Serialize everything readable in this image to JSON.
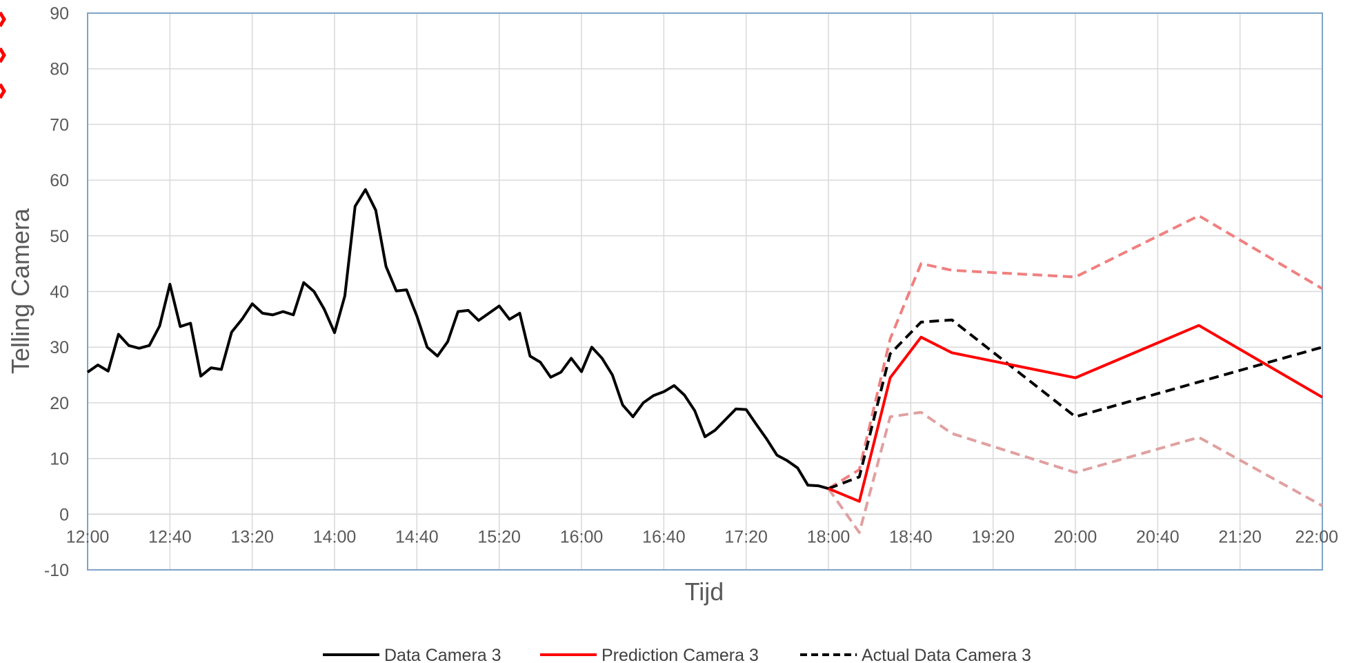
{
  "chart_data": {
    "type": "line",
    "title": "",
    "xlabel": "Tijd",
    "ylabel": "Telling Camera",
    "ylim": [
      -10,
      90
    ],
    "yticks": [
      -10,
      0,
      10,
      20,
      30,
      40,
      50,
      60,
      70,
      80,
      90
    ],
    "xlim": [
      "12:00",
      "22:00"
    ],
    "xticks": [
      "12:00",
      "12:40",
      "13:20",
      "14:00",
      "14:40",
      "15:20",
      "16:00",
      "16:40",
      "17:20",
      "18:00",
      "18:40",
      "19:20",
      "20:00",
      "20:40",
      "21:20",
      "22:00"
    ],
    "grid": true,
    "legend_position": "bottom",
    "series": [
      {
        "name": "Data Camera 3",
        "color": "#000000",
        "style": "solid",
        "legend": true,
        "points": [
          [
            "12:00",
            25.5
          ],
          [
            "12:05",
            26.8
          ],
          [
            "12:10",
            25.7
          ],
          [
            "12:15",
            32.3
          ],
          [
            "12:20",
            30.3
          ],
          [
            "12:25",
            29.8
          ],
          [
            "12:30",
            30.3
          ],
          [
            "12:35",
            33.8
          ],
          [
            "12:40",
            41.3
          ],
          [
            "12:45",
            33.7
          ],
          [
            "12:50",
            34.3
          ],
          [
            "12:55",
            24.8
          ],
          [
            "13:00",
            26.3
          ],
          [
            "13:05",
            26.0
          ],
          [
            "13:10",
            32.7
          ],
          [
            "13:15",
            35.0
          ],
          [
            "13:20",
            37.8
          ],
          [
            "13:25",
            36.1
          ],
          [
            "13:30",
            35.8
          ],
          [
            "13:35",
            36.4
          ],
          [
            "13:40",
            35.8
          ],
          [
            "13:45",
            41.6
          ],
          [
            "13:50",
            40.0
          ],
          [
            "13:55",
            36.8
          ],
          [
            "14:00",
            32.6
          ],
          [
            "14:05",
            39.2
          ],
          [
            "14:10",
            55.3
          ],
          [
            "14:15",
            58.3
          ],
          [
            "14:20",
            54.6
          ],
          [
            "14:25",
            44.5
          ],
          [
            "14:30",
            40.1
          ],
          [
            "14:35",
            40.3
          ],
          [
            "14:40",
            35.6
          ],
          [
            "14:45",
            30.0
          ],
          [
            "14:50",
            28.4
          ],
          [
            "14:55",
            31.0
          ],
          [
            "15:00",
            36.4
          ],
          [
            "15:05",
            36.6
          ],
          [
            "15:10",
            34.8
          ],
          [
            "15:15",
            36.1
          ],
          [
            "15:20",
            37.4
          ],
          [
            "15:25",
            35.0
          ],
          [
            "15:30",
            36.1
          ],
          [
            "15:35",
            28.4
          ],
          [
            "15:40",
            27.3
          ],
          [
            "15:45",
            24.6
          ],
          [
            "15:50",
            25.5
          ],
          [
            "15:55",
            28.0
          ],
          [
            "16:00",
            25.6
          ],
          [
            "16:05",
            30.0
          ],
          [
            "16:10",
            28.0
          ],
          [
            "16:15",
            25.0
          ],
          [
            "16:20",
            19.6
          ],
          [
            "16:25",
            17.5
          ],
          [
            "16:30",
            20.0
          ],
          [
            "16:35",
            21.3
          ],
          [
            "16:40",
            22.0
          ],
          [
            "16:45",
            23.1
          ],
          [
            "16:50",
            21.4
          ],
          [
            "16:55",
            18.6
          ],
          [
            "17:00",
            13.9
          ],
          [
            "17:05",
            15.1
          ],
          [
            "17:10",
            17.0
          ],
          [
            "17:15",
            18.9
          ],
          [
            "17:20",
            18.8
          ],
          [
            "17:25",
            16.1
          ],
          [
            "17:30",
            13.5
          ],
          [
            "17:35",
            10.6
          ],
          [
            "17:40",
            9.6
          ],
          [
            "17:45",
            8.3
          ],
          [
            "17:50",
            5.2
          ],
          [
            "17:55",
            5.1
          ],
          [
            "18:00",
            4.6
          ]
        ]
      },
      {
        "name": "Prediction Camera 3",
        "color": "#ff0000",
        "style": "solid",
        "legend": true,
        "points": [
          [
            "18:00",
            4.6
          ],
          [
            "18:15",
            2.3
          ],
          [
            "18:30",
            24.5
          ],
          [
            "18:45",
            31.8
          ],
          [
            "19:00",
            29.0
          ],
          [
            "20:00",
            24.5
          ],
          [
            "21:00",
            33.9
          ],
          [
            "22:00",
            21.0
          ]
        ]
      },
      {
        "name": "Actual Data Camera 3",
        "color": "#000000",
        "style": "dashed",
        "legend": true,
        "points": [
          [
            "18:00",
            4.6
          ],
          [
            "18:15",
            6.7
          ],
          [
            "18:30",
            28.8
          ],
          [
            "18:45",
            34.5
          ],
          [
            "19:00",
            34.9
          ],
          [
            "20:00",
            17.5
          ],
          [
            "22:00",
            30.0
          ]
        ]
      },
      {
        "name": "",
        "color": "#f08080",
        "style": "dashed",
        "legend": false,
        "points": [
          [
            "18:00",
            4.6
          ],
          [
            "18:15",
            8.0
          ],
          [
            "18:30",
            31.5
          ],
          [
            "18:45",
            45.0
          ],
          [
            "19:00",
            43.8
          ],
          [
            "20:00",
            42.6
          ],
          [
            "21:00",
            53.6
          ],
          [
            "22:00",
            40.5
          ]
        ]
      },
      {
        "name": "",
        "color": "#e0a0a0",
        "style": "dashed",
        "legend": false,
        "points": [
          [
            "18:00",
            4.6
          ],
          [
            "18:15",
            -3.3
          ],
          [
            "18:30",
            17.5
          ],
          [
            "18:45",
            18.3
          ],
          [
            "19:00",
            14.5
          ],
          [
            "20:00",
            7.5
          ],
          [
            "21:00",
            13.8
          ],
          [
            "22:00",
            1.5
          ]
        ]
      }
    ]
  },
  "decorations": {
    "left_edge_marker_color": "#ff0000"
  }
}
